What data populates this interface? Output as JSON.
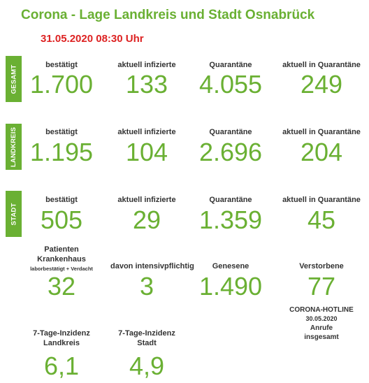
{
  "title": "Corona - Lage Landkreis und Stadt Osnabrück",
  "date": "31.05.2020  08:30 Uhr",
  "sections": [
    {
      "tag": "GESAMT",
      "labels": [
        "bestätigt",
        "aktuell infizierte",
        "Quarantäne",
        "aktuell in Quarantäne"
      ],
      "values": [
        "1.700",
        "133",
        "4.055",
        "249"
      ]
    },
    {
      "tag": "LANDKREIS",
      "labels": [
        "bestätigt",
        "aktuell infizierte",
        "Quarantäne",
        "aktuell in Quarantäne"
      ],
      "values": [
        "1.195",
        "104",
        "2.696",
        "204"
      ]
    },
    {
      "tag": "STADT",
      "labels": [
        "bestätigt",
        "aktuell infizierte",
        "Quarantäne",
        "aktuell in Quarantäne"
      ],
      "values": [
        "505",
        "29",
        "1.359",
        "45"
      ]
    }
  ],
  "extra": {
    "hospital_label_1": "Patienten",
    "hospital_label_2": "Krankenhaus",
    "hospital_note": "laborbestätigt + Verdacht",
    "hospital_value": "32",
    "icu_label": "davon intensivpflichtig",
    "icu_value": "3",
    "recovered_label": "Genesene",
    "recovered_value": "1.490",
    "deaths_label": "Verstorbene",
    "deaths_value": "77"
  },
  "incidence": {
    "district_label_1": "7-Tage-Inzidenz",
    "district_label_2": "Landkreis",
    "district_value": "6,1",
    "city_label_1": "7-Tage-Inzidenz",
    "city_label_2": "Stadt",
    "city_value": "4,9"
  },
  "hotline": {
    "title": "CORONA-HOTLINE",
    "date": "30.05.2020",
    "label_1": "Anrufe",
    "label_2": "insgesamt"
  },
  "colors": {
    "accent_green": "#6ab033",
    "date_red": "#dd2222"
  }
}
